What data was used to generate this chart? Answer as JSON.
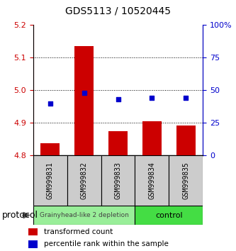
{
  "title": "GDS5113 / 10520445",
  "samples": [
    "GSM999831",
    "GSM999832",
    "GSM999833",
    "GSM999834",
    "GSM999835"
  ],
  "bar_values": [
    4.838,
    5.135,
    4.875,
    4.905,
    4.893
  ],
  "bar_base": 4.8,
  "blue_values": [
    40,
    48,
    43,
    44,
    44
  ],
  "ylim": [
    4.8,
    5.2
  ],
  "y2lim": [
    0,
    100
  ],
  "yticks": [
    4.8,
    4.9,
    5.0,
    5.1,
    5.2
  ],
  "y2ticks": [
    0,
    25,
    50,
    75,
    100
  ],
  "bar_color": "#cc0000",
  "blue_color": "#0000cc",
  "bar_width": 0.55,
  "group1_label": "Grainyhead-like 2 depletion",
  "group2_label": "control",
  "group1_color": "#99ee99",
  "group2_color": "#44dd44",
  "protocol_label": "protocol",
  "legend_red_label": "transformed count",
  "legend_blue_label": "percentile rank within the sample",
  "tick_color_left": "#cc0000",
  "tick_color_right": "#0000cc",
  "sample_box_color": "#cccccc"
}
